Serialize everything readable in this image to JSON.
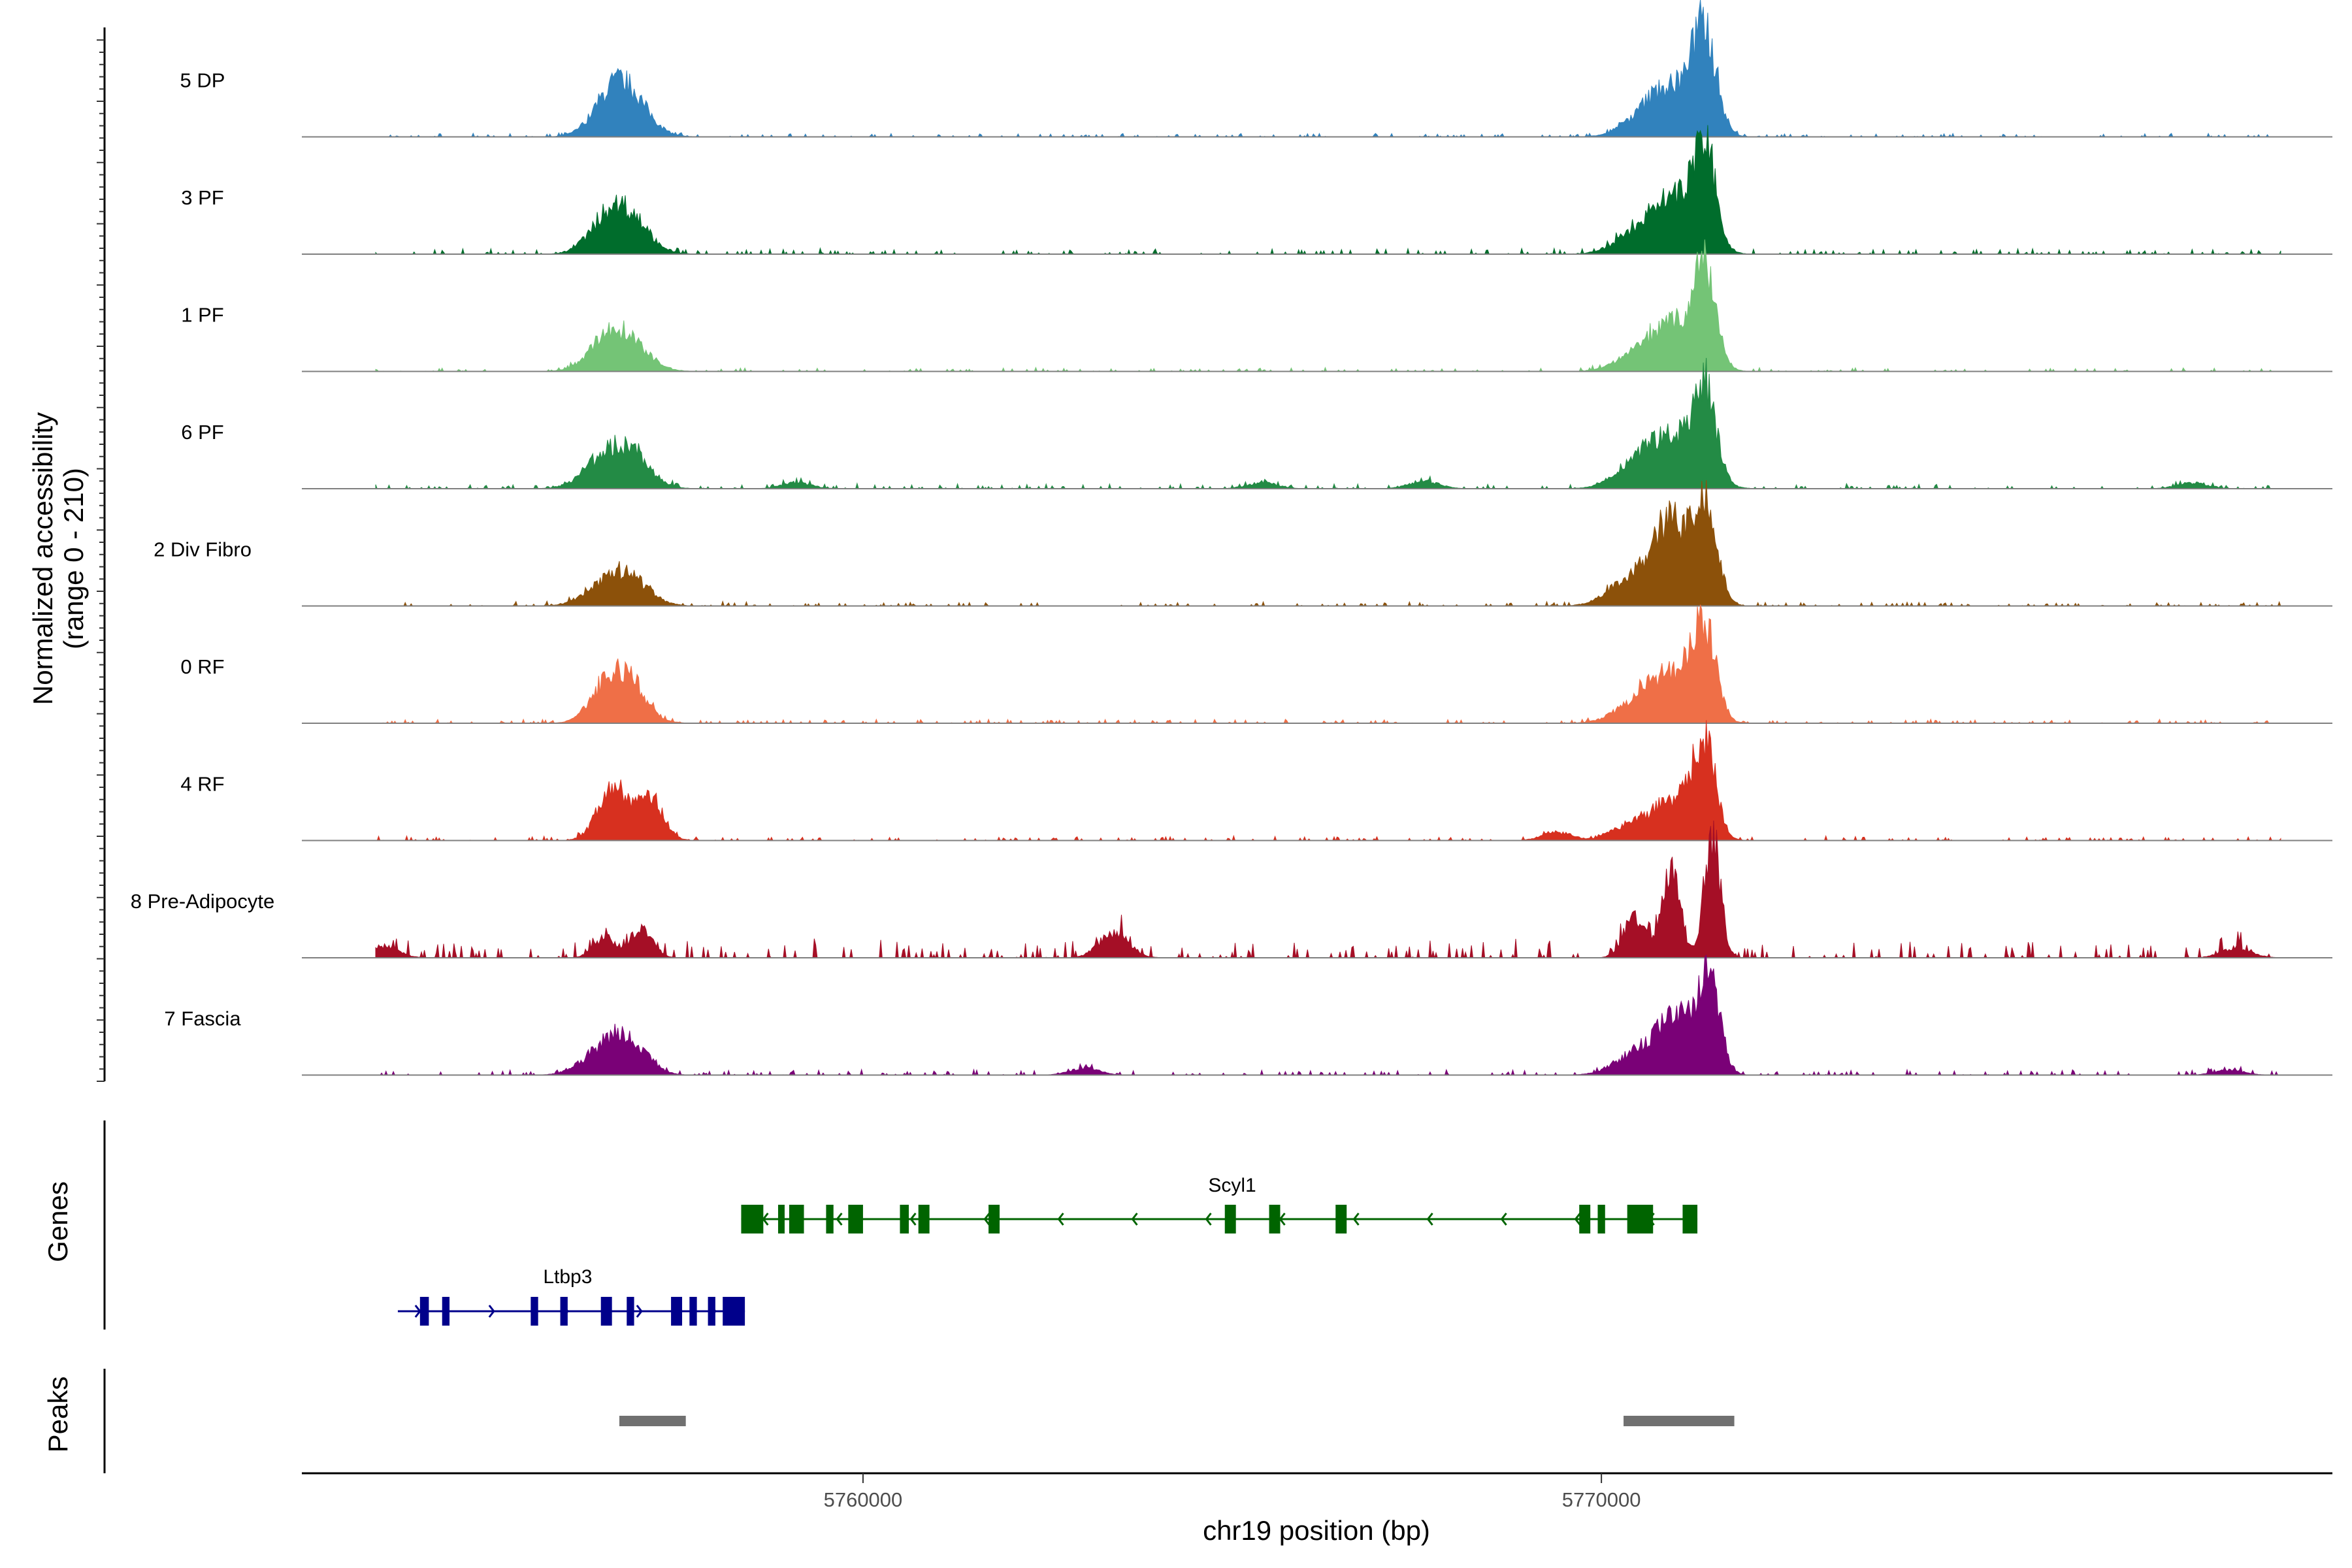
{
  "chart_data": {
    "type": "area",
    "xlabel": "chr19 position (bp)",
    "ylabel_line1": "Normalized accessibility",
    "ylabel_line2": "(range 0 - 210)",
    "yrange": [
      0,
      210
    ],
    "xrange": [
      5752400,
      5779900
    ],
    "xticks": [
      5760000,
      5770000
    ],
    "xtick_labels": [
      "5760000",
      "5770000"
    ],
    "tracks": [
      {
        "name": "5 DP",
        "color": "#3182bd",
        "peaks": [
          [
            5756800,
            0.42,
            280
          ],
          [
            5756550,
            0.22,
            250
          ],
          [
            5771400,
            0.95,
            160
          ],
          [
            5771000,
            0.45,
            300
          ],
          [
            5770600,
            0.18,
            300
          ]
        ],
        "noise": 0.03,
        "extra": []
      },
      {
        "name": "3 PF",
        "color": "#006d2c",
        "peaks": [
          [
            5756800,
            0.38,
            280
          ],
          [
            5756500,
            0.22,
            250
          ],
          [
            5771400,
            1.0,
            150
          ],
          [
            5771000,
            0.52,
            300
          ],
          [
            5770500,
            0.2,
            300
          ]
        ],
        "noise": 0.05,
        "extra": []
      },
      {
        "name": "1 PF",
        "color": "#74c476",
        "peaks": [
          [
            5756800,
            0.3,
            280
          ],
          [
            5756500,
            0.2,
            260
          ],
          [
            5771400,
            0.9,
            150
          ],
          [
            5771000,
            0.45,
            300
          ],
          [
            5770500,
            0.15,
            300
          ]
        ],
        "noise": 0.035,
        "extra": []
      },
      {
        "name": "6 PF",
        "color": "#238b45",
        "peaks": [
          [
            5756800,
            0.38,
            280
          ],
          [
            5756400,
            0.18,
            260
          ],
          [
            5771400,
            0.88,
            150
          ],
          [
            5771000,
            0.5,
            320
          ],
          [
            5770500,
            0.22,
            300
          ]
        ],
        "noise": 0.045,
        "extra": [
          [
            5767600,
            0.08
          ],
          [
            5765400,
            0.06
          ],
          [
            5778000,
            0.06
          ],
          [
            5759100,
            0.06
          ]
        ]
      },
      {
        "name": "2 Div Fibro",
        "color": "#8c510a",
        "peaks": [
          [
            5756800,
            0.3,
            280
          ],
          [
            5756400,
            0.12,
            260
          ],
          [
            5771400,
            1.05,
            160
          ],
          [
            5770950,
            0.75,
            200
          ],
          [
            5770500,
            0.35,
            320
          ]
        ],
        "noise": 0.04,
        "extra": []
      },
      {
        "name": "0 RF",
        "color": "#ef6f47",
        "peaks": [
          [
            5756800,
            0.42,
            250
          ],
          [
            5756500,
            0.25,
            230
          ],
          [
            5771400,
            0.85,
            150
          ],
          [
            5771000,
            0.48,
            300
          ],
          [
            5770500,
            0.2,
            300
          ]
        ],
        "noise": 0.035,
        "extra": []
      },
      {
        "name": "4 RF",
        "color": "#d7301f",
        "peaks": [
          [
            5757100,
            0.45,
            180
          ],
          [
            5756600,
            0.5,
            200
          ],
          [
            5771400,
            0.88,
            150
          ],
          [
            5771000,
            0.42,
            280
          ],
          [
            5770400,
            0.15,
            260
          ]
        ],
        "noise": 0.04,
        "extra": [
          [
            5769400,
            0.08
          ]
        ]
      },
      {
        "name": "8 Pre-Adipocyte",
        "color": "#a50f26",
        "peaks": [
          [
            5771500,
            1.25,
            110
          ],
          [
            5770950,
            0.9,
            120
          ],
          [
            5770450,
            0.4,
            150
          ],
          [
            5757000,
            0.3,
            150
          ],
          [
            5756500,
            0.2,
            150
          ]
        ],
        "noise": 0.16,
        "extra": [
          [
            5763400,
            0.25
          ],
          [
            5778600,
            0.1
          ],
          [
            5753500,
            0.12
          ]
        ]
      },
      {
        "name": "7 Fascia",
        "color": "#7a0177",
        "peaks": [
          [
            5756800,
            0.35,
            260
          ],
          [
            5756400,
            0.18,
            260
          ],
          [
            5771450,
            0.95,
            150
          ],
          [
            5771000,
            0.55,
            260
          ],
          [
            5770450,
            0.2,
            280
          ]
        ],
        "noise": 0.05,
        "extra": [
          [
            5763000,
            0.07
          ],
          [
            5778500,
            0.05
          ]
        ]
      }
    ],
    "genes_label": "Genes",
    "genes": [
      {
        "name": "Scyl1",
        "strand": "-",
        "color": "#006400",
        "start": 5758350,
        "end": 5771300,
        "exons": [
          [
            5758350,
            5758650
          ],
          [
            5758850,
            5758930
          ],
          [
            5759000,
            5759200
          ],
          [
            5759500,
            5759600
          ],
          [
            5759800,
            5760000
          ],
          [
            5760500,
            5760620
          ],
          [
            5760750,
            5760900
          ],
          [
            5761700,
            5761850
          ],
          [
            5764900,
            5765050
          ],
          [
            5765500,
            5765650
          ],
          [
            5766400,
            5766550
          ],
          [
            5769700,
            5769850
          ],
          [
            5769950,
            5770050
          ],
          [
            5770350,
            5770700
          ],
          [
            5771100,
            5771300
          ]
        ]
      },
      {
        "name": "Ltbp3",
        "strand": "+",
        "color": "#00008b",
        "start": 5753700,
        "end": 5758400,
        "exons": [
          [
            5754000,
            5754120
          ],
          [
            5754300,
            5754400
          ],
          [
            5755500,
            5755600
          ],
          [
            5755900,
            5756000
          ],
          [
            5756450,
            5756600
          ],
          [
            5756800,
            5756900
          ],
          [
            5757400,
            5757550
          ],
          [
            5757650,
            5757750
          ],
          [
            5757900,
            5758000
          ],
          [
            5758100,
            5758400
          ]
        ]
      }
    ],
    "peaks_label": "Peaks",
    "peak_regions": [
      [
        5756700,
        5757600
      ],
      [
        5770300,
        5771800
      ]
    ]
  }
}
